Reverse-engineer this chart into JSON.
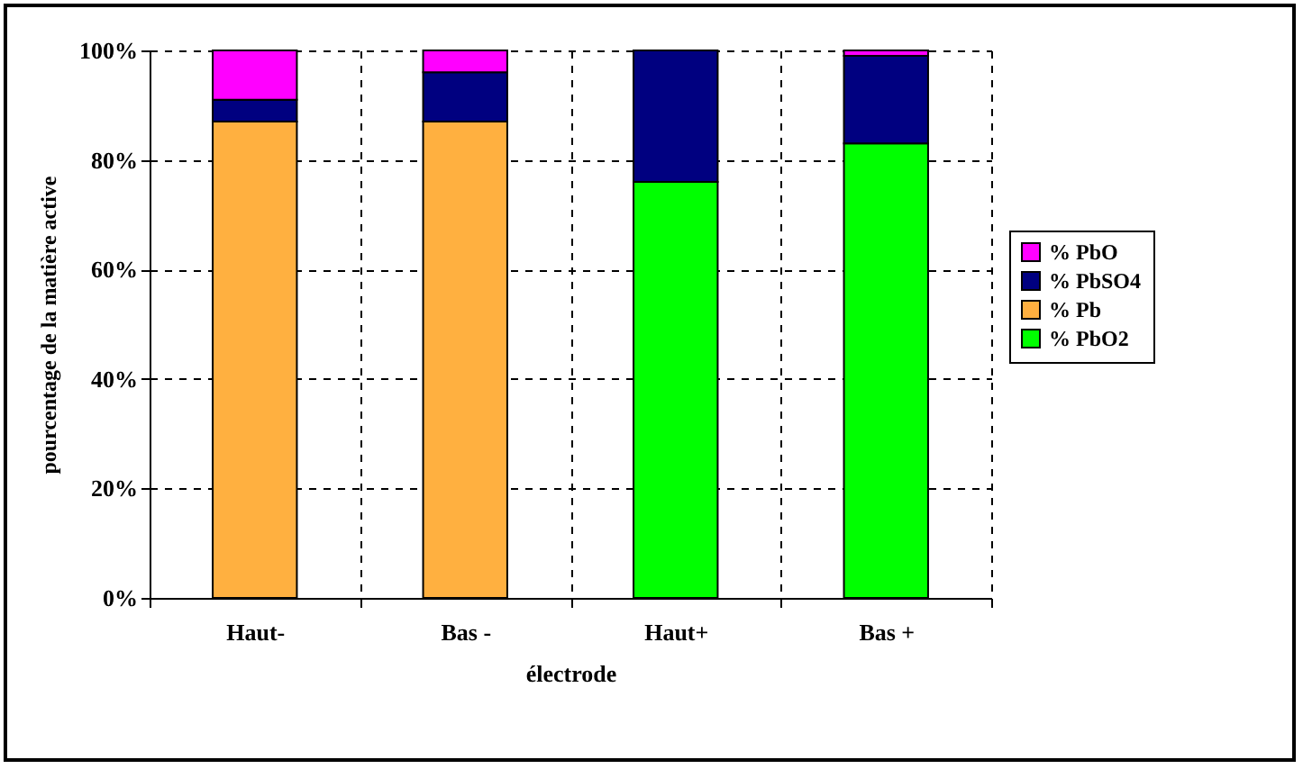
{
  "chart_data": {
    "type": "bar",
    "stacked": true,
    "xlabel": "électrode",
    "ylabel": "pourcentage de la matière active",
    "categories": [
      "Haut-",
      "Bas -",
      "Haut+",
      "Bas +"
    ],
    "series": [
      {
        "name": "% PbO2",
        "color": "#00ff00",
        "values": [
          0,
          0,
          76,
          83
        ]
      },
      {
        "name": "% Pb",
        "color": "#ffb040",
        "values": [
          87,
          87,
          0,
          0
        ]
      },
      {
        "name": "% PbSO4",
        "color": "#000080",
        "values": [
          4,
          9,
          24,
          16
        ]
      },
      {
        "name": "% PbO",
        "color": "#ff00ff",
        "values": [
          9,
          4,
          0,
          1
        ]
      }
    ],
    "ylim": [
      0,
      100
    ],
    "yticks": [
      {
        "value": 0,
        "label": "0%"
      },
      {
        "value": 20,
        "label": "20%"
      },
      {
        "value": 40,
        "label": "40%"
      },
      {
        "value": 60,
        "label": "60%"
      },
      {
        "value": 80,
        "label": "80%"
      },
      {
        "value": 100,
        "label": "100%"
      }
    ],
    "grid": true,
    "legend": "right"
  }
}
